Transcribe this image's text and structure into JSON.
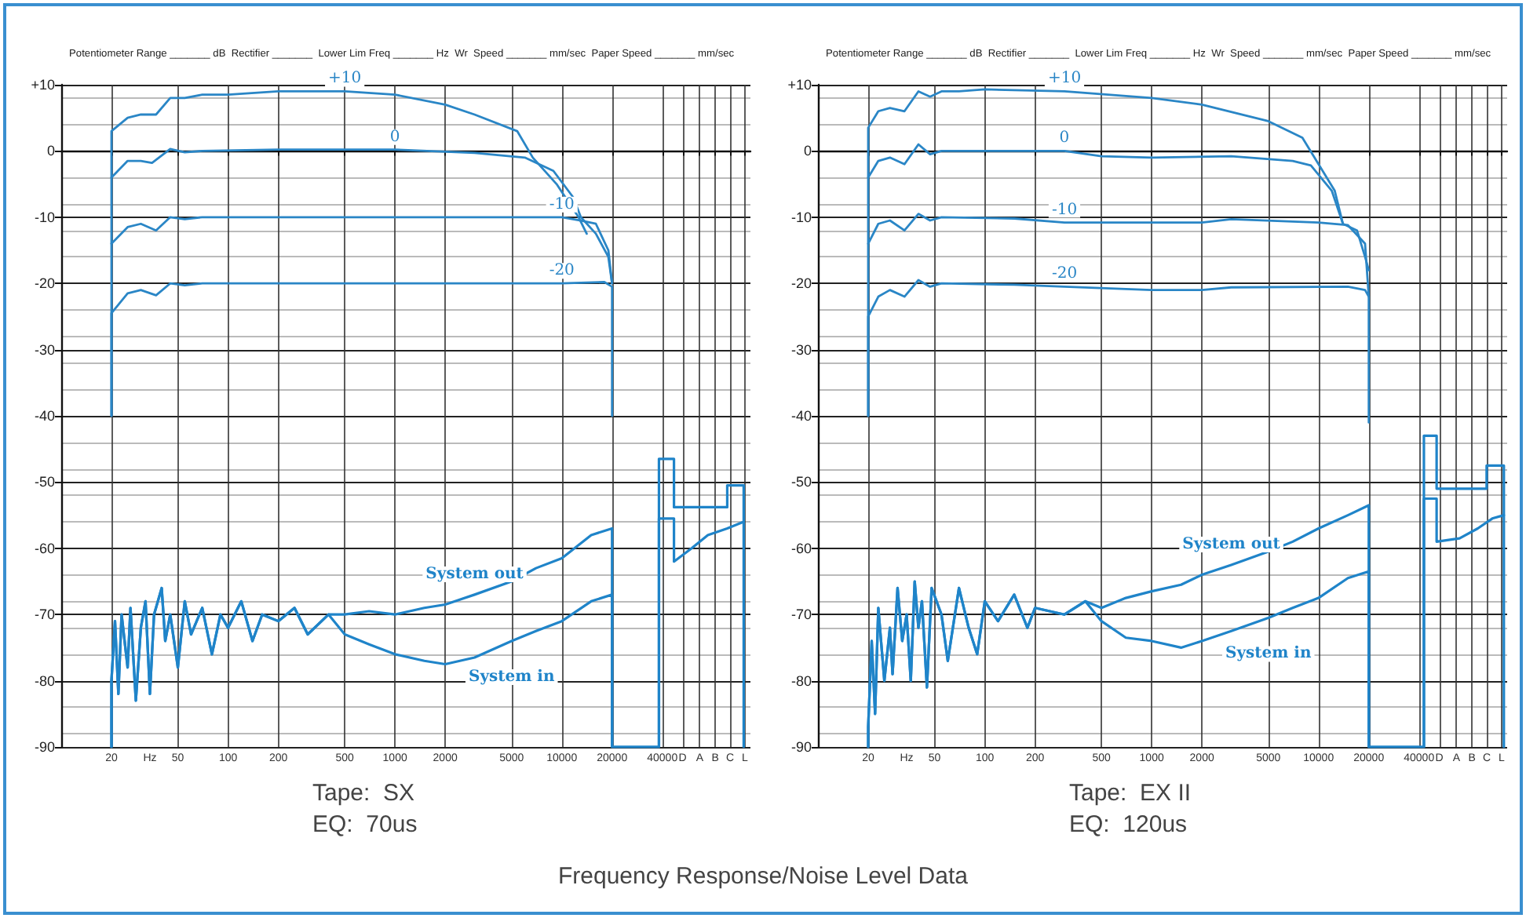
{
  "chart_data": [
    {
      "type": "line",
      "subtitle": "Potentiometer Range _______ dB  Rectifier _______  Lower Lim Freq _______ Hz  Wr  Speed _______ mm/sec  Paper Speed _______ mm/sec",
      "xlabel": "Hz",
      "annotations": [
        "Tape:  SX",
        "EQ:  70us"
      ],
      "log": "x",
      "grid": true,
      "legend": false,
      "marker": "none",
      "line_style": "solid",
      "xlim": [
        10,
        135000
      ],
      "xticks": [
        20,
        50,
        100,
        200,
        500,
        1000,
        2000,
        5000,
        10000,
        20000,
        40000,
        {
          "value": 53000,
          "label": "D"
        },
        {
          "value": 67000,
          "label": "A"
        },
        {
          "value": 83000,
          "label": "B"
        },
        {
          "value": 102000,
          "label": "C"
        },
        {
          "value": 125000,
          "label": "L"
        }
      ],
      "ylim": [
        -90,
        10
      ],
      "yticks": [
        -90,
        -80,
        -70,
        -60,
        -50,
        -40,
        -30,
        -20,
        -10,
        0,
        {
          "value": 10,
          "label": "+10"
        }
      ],
      "series": [
        {
          "name": "+10",
          "color": "#2a86c6",
          "x": [
            20,
            20,
            25,
            30,
            37,
            45,
            55,
            70,
            100,
            200,
            500,
            1000,
            2000,
            3000,
            5400,
            6700,
            9300,
            12600,
            14100
          ],
          "values": [
            -40,
            3,
            5,
            5.5,
            5.5,
            8,
            8,
            8.5,
            8.5,
            9,
            9,
            8.5,
            7,
            5.5,
            3,
            -1,
            -5,
            -10,
            -12.5
          ]
        },
        {
          "name": "0",
          "color": "#2a86c6",
          "x": [
            20,
            25,
            30,
            35,
            45,
            55,
            70,
            200,
            1000,
            3000,
            6000,
            8900,
            11700,
            13000,
            16000,
            19000,
            20000
          ],
          "values": [
            -4,
            -1.5,
            -1.5,
            -1.8,
            0.3,
            -0.2,
            0,
            0.2,
            0.2,
            -0.3,
            -1,
            -3,
            -7,
            -10,
            -12.5,
            -16,
            -20
          ]
        },
        {
          "name": "-10",
          "color": "#2a86c6",
          "x": [
            20,
            25,
            30,
            37,
            45,
            55,
            70,
            10000,
            13000,
            16000,
            19000,
            20000
          ],
          "values": [
            -14,
            -11.5,
            -11,
            -12,
            -10,
            -10.3,
            -10,
            -10,
            -10.5,
            -11,
            -15,
            -20
          ]
        },
        {
          "name": "-20",
          "color": "#2a86c6",
          "x": [
            20,
            20,
            25,
            30,
            37,
            45,
            55,
            70,
            10000,
            18000,
            20000,
            20000
          ],
          "values": [
            -40,
            -24.5,
            -21.5,
            -21,
            -21.8,
            -20,
            -20.3,
            -20,
            -20,
            -19.8,
            -20.5,
            -40
          ]
        },
        {
          "name": "System out",
          "color": "#1f84c9",
          "x": [
            20,
            20,
            21,
            22,
            23,
            25,
            26,
            28,
            30,
            32,
            34,
            36,
            40,
            42,
            45,
            50,
            55,
            60,
            70,
            80,
            90,
            100,
            120,
            140,
            160,
            200,
            250,
            300,
            400,
            500,
            700,
            1000,
            1500,
            2000,
            3000,
            5000,
            7000,
            10000,
            15000,
            20000,
            20000,
            38200,
            38200,
            47000,
            47000,
            98000,
            98000,
            123000,
            123000
          ],
          "values": [
            -90,
            -80,
            -71,
            -82,
            -70,
            -78,
            -69,
            -83,
            -72,
            -68,
            -82,
            -70,
            -66,
            -74,
            -70,
            -78,
            -68,
            -73,
            -69,
            -76,
            -70,
            -72,
            -68,
            -74,
            -70,
            -71,
            -69,
            -73,
            -70,
            -70,
            -69.5,
            -70,
            -69,
            -68.5,
            -67,
            -65,
            -63,
            -61.5,
            -58,
            -57,
            -90,
            -90,
            -46.5,
            -46.5,
            -53.8,
            -53.8,
            -50.5,
            -50.5,
            -90
          ]
        },
        {
          "name": "System in",
          "color": "#1f84c9",
          "x": [
            20,
            20,
            21,
            22,
            23,
            25,
            26,
            28,
            30,
            32,
            34,
            36,
            40,
            42,
            45,
            50,
            55,
            60,
            70,
            80,
            90,
            100,
            120,
            140,
            160,
            200,
            250,
            300,
            400,
            500,
            700,
            1000,
            1500,
            2000,
            3000,
            5000,
            7000,
            10000,
            15000,
            20000,
            20000,
            38200,
            38200,
            47000,
            47000,
            60000,
            75000,
            98000,
            123000
          ],
          "values": [
            -90,
            -80,
            -71,
            -82,
            -70,
            -78,
            -69,
            -83,
            -72,
            -68,
            -82,
            -70,
            -66,
            -74,
            -70,
            -78,
            -68,
            -73,
            -69,
            -76,
            -70,
            -72,
            -68,
            -74,
            -70,
            -71,
            -69,
            -73,
            -70,
            -73,
            -74.5,
            -76,
            -77,
            -77.5,
            -76.5,
            -74,
            -72.5,
            -71,
            -68,
            -67,
            -90,
            -90,
            -55.5,
            -55.5,
            -62,
            -60,
            -58,
            -57,
            -56
          ]
        }
      ]
    },
    {
      "type": "line",
      "subtitle": "Potentiometer Range _______ dB  Rectifier _______  Lower Lim Freq _______ Hz  Wr  Speed _______ mm/sec  Paper Speed _______ mm/sec",
      "xlabel": "Hz",
      "annotations": [
        "Tape:  EX II",
        "EQ:  120us"
      ],
      "log": "x",
      "grid": true,
      "legend": false,
      "marker": "none",
      "line_style": "solid",
      "xlim": [
        10,
        135000
      ],
      "xticks": [
        20,
        50,
        100,
        200,
        500,
        1000,
        2000,
        5000,
        10000,
        20000,
        40000,
        {
          "value": 53000,
          "label": "D"
        },
        {
          "value": 67000,
          "label": "A"
        },
        {
          "value": 83000,
          "label": "B"
        },
        {
          "value": 102000,
          "label": "C"
        },
        {
          "value": 125000,
          "label": "L"
        }
      ],
      "ylim": [
        -90,
        10
      ],
      "yticks": [
        -90,
        -80,
        -70,
        -60,
        -50,
        -40,
        -30,
        -20,
        -10,
        0,
        {
          "value": 10,
          "label": "+10"
        }
      ],
      "series": [
        {
          "name": "+10",
          "color": "#2a86c6",
          "x": [
            20,
            20,
            23,
            27,
            33,
            40,
            47,
            55,
            70,
            100,
            300,
            1000,
            2000,
            5000,
            8000,
            10000,
            12500,
            14000
          ],
          "values": [
            -40,
            3.5,
            6,
            6.5,
            6,
            9,
            8.2,
            9,
            9,
            9.3,
            9,
            8,
            7,
            4.5,
            2,
            -2,
            -6,
            -11
          ]
        },
        {
          "name": "0",
          "color": "#2a86c6",
          "x": [
            20,
            23,
            27,
            33,
            40,
            47,
            55,
            100,
            300,
            500,
            1000,
            3000,
            7000,
            9000,
            12000,
            14000,
            17000,
            19000,
            20000
          ],
          "values": [
            -4,
            -1.5,
            -1,
            -2,
            1,
            -0.5,
            0,
            0,
            0,
            -0.8,
            -1,
            -0.8,
            -1.5,
            -2.2,
            -6,
            -11,
            -12,
            -16,
            -18
          ]
        },
        {
          "name": "-10",
          "color": "#2a86c6",
          "x": [
            20,
            23,
            27,
            33,
            40,
            47,
            55,
            150,
            300,
            2000,
            3000,
            10000,
            15000,
            19000,
            20000
          ],
          "values": [
            -14,
            -11,
            -10.5,
            -12,
            -9.5,
            -10.5,
            -10,
            -10.2,
            -10.8,
            -10.8,
            -10.3,
            -10.8,
            -11.2,
            -14,
            -22
          ]
        },
        {
          "name": "-20",
          "color": "#2a86c6",
          "x": [
            20,
            20,
            23,
            27,
            33,
            40,
            47,
            55,
            150,
            300,
            1000,
            2000,
            3000,
            15000,
            19000,
            20000,
            20000
          ],
          "values": [
            -40,
            -25,
            -22,
            -21,
            -22,
            -19.5,
            -20.5,
            -20,
            -20.2,
            -20.5,
            -21,
            -21,
            -20.6,
            -20.5,
            -21,
            -22,
            -41
          ]
        },
        {
          "name": "System out",
          "color": "#1f84c9",
          "x": [
            20,
            20,
            21,
            22,
            23,
            25,
            27,
            28,
            30,
            32,
            34,
            36,
            38,
            40,
            42,
            45,
            48,
            55,
            60,
            70,
            80,
            90,
            100,
            120,
            150,
            180,
            200,
            300,
            400,
            500,
            700,
            1000,
            1500,
            2000,
            3000,
            5000,
            7000,
            10000,
            15000,
            20000,
            20000,
            42800,
            42800,
            51000,
            51000,
            101700,
            101700,
            129000,
            129000
          ],
          "values": [
            -90,
            -87,
            -74,
            -85,
            -69,
            -80,
            -72,
            -79,
            -66,
            -74,
            -70,
            -80,
            -65,
            -72,
            -68,
            -81,
            -66,
            -70,
            -77,
            -66,
            -72,
            -76,
            -68,
            -71,
            -67,
            -72,
            -69,
            -70,
            -68,
            -69,
            -67.5,
            -66.5,
            -65.5,
            -64,
            -62.5,
            -60.5,
            -59,
            -57,
            -55,
            -53.5,
            -90,
            -90,
            -43,
            -43,
            -51,
            -51,
            -47.5,
            -47.5,
            -90
          ]
        },
        {
          "name": "System in",
          "color": "#1f84c9",
          "x": [
            20,
            20,
            21,
            22,
            23,
            25,
            27,
            28,
            30,
            32,
            34,
            36,
            38,
            40,
            42,
            45,
            48,
            55,
            60,
            70,
            80,
            90,
            100,
            120,
            150,
            180,
            200,
            300,
            400,
            500,
            700,
            1000,
            1500,
            2000,
            3000,
            5000,
            7000,
            10000,
            15000,
            20000,
            20000,
            42800,
            42800,
            51000,
            51000,
            70000,
            90000,
            110000,
            129000
          ],
          "values": [
            -90,
            -87,
            -74,
            -85,
            -69,
            -80,
            -72,
            -79,
            -66,
            -74,
            -70,
            -80,
            -65,
            -72,
            -68,
            -81,
            -66,
            -70,
            -77,
            -66,
            -72,
            -76,
            -68,
            -71,
            -67,
            -72,
            -69,
            -70,
            -68,
            -71,
            -73.5,
            -74,
            -75,
            -74,
            -72.5,
            -70.5,
            -69,
            -67.5,
            -64.5,
            -63.5,
            -90,
            -90,
            -52.5,
            -52.5,
            -59,
            -58.5,
            -57,
            -55.5,
            -55
          ]
        }
      ]
    },
    {
      "type": "other",
      "title": "Frequency Response/Noise Level Data"
    }
  ]
}
